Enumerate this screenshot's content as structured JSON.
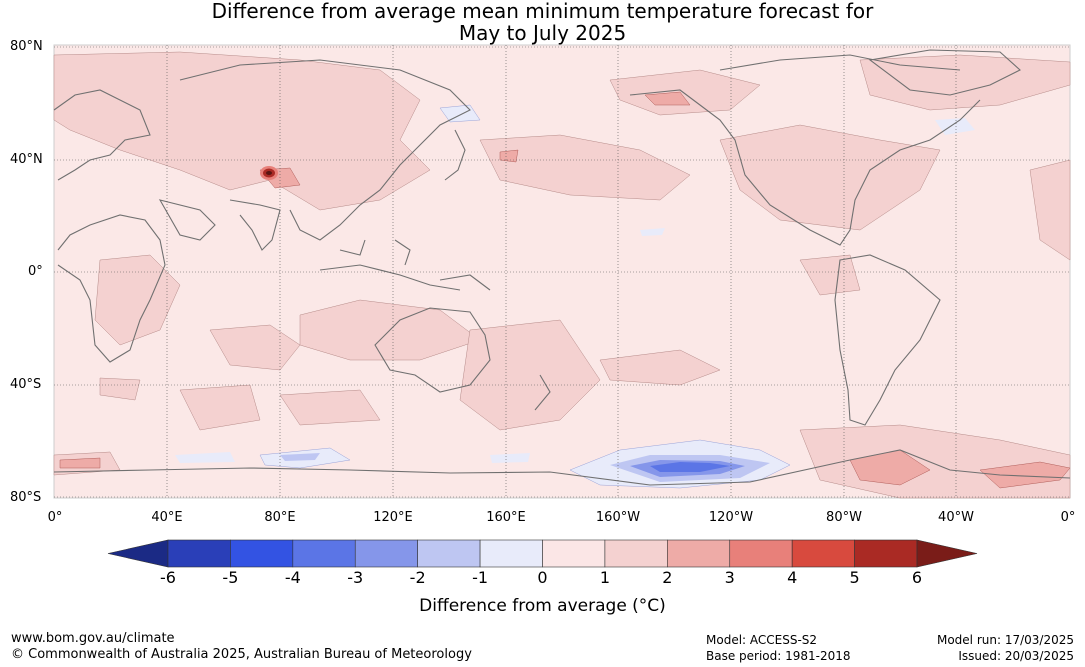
{
  "title_line1": "Difference from average mean minimum temperature forecast for",
  "title_line2": "May to July 2025",
  "lat_labels": [
    "80°N",
    "40°N",
    "0°",
    "40°S",
    "80°S"
  ],
  "lon_labels": [
    "0°",
    "40°E",
    "80°E",
    "120°E",
    "160°E",
    "160°W",
    "120°W",
    "80°W",
    "40°W",
    "0°"
  ],
  "colorbar": {
    "ticks": [
      "-6",
      "-5",
      "-4",
      "-3",
      "-2",
      "-1",
      "0",
      "1",
      "2",
      "3",
      "4",
      "5",
      "6"
    ],
    "colors": [
      "#2a3fb8",
      "#3353e3",
      "#5b75e6",
      "#8596ea",
      "#bec6f2",
      "#e8ebfa",
      "#fbe6e6",
      "#f4d1d0",
      "#eeaba7",
      "#e8807a",
      "#d84a3e",
      "#aa2a24"
    ],
    "low_extend_color": "#1b2a85",
    "high_extend_color": "#7a1c18",
    "label": "Difference from average (°C)"
  },
  "footer": {
    "url": "www.bom.gov.au/climate",
    "copyright": "© Commonwealth of Australia 2025, Australian Bureau of Meteorology",
    "model": "Model: ACCESS-S2",
    "base_period": "Base period: 1981-2018",
    "model_run": "Model run: 17/03/2025",
    "issued": "Issued: 20/03/2025"
  }
}
